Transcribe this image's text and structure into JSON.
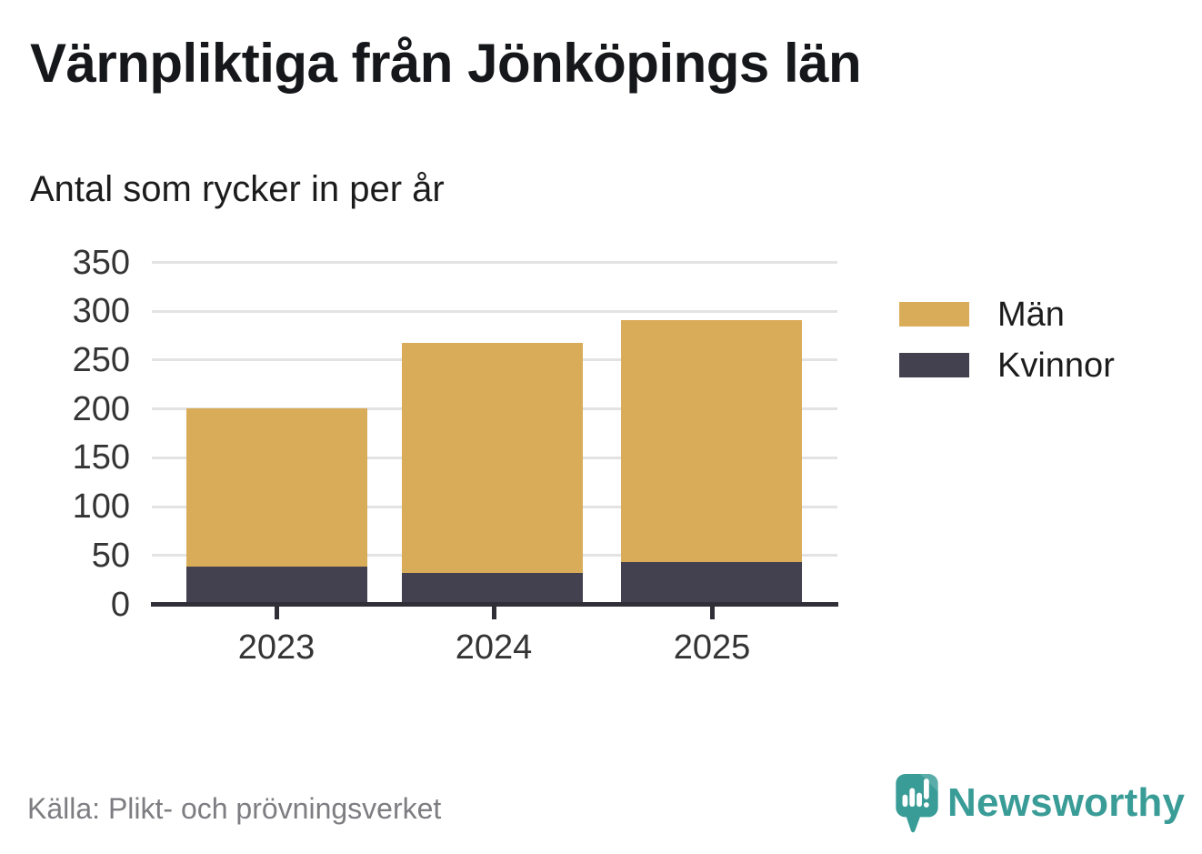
{
  "chart_data": {
    "type": "bar",
    "stacked": true,
    "title": "Värnpliktiga från Jönköpings län",
    "subtitle": "Antal som rycker in per år",
    "source": "Källa: Plikt- och prövningsverket",
    "categories": [
      "2023",
      "2024",
      "2025"
    ],
    "series": [
      {
        "name": "Kvinnor",
        "color": "#434050",
        "values": [
          39,
          32,
          43
        ]
      },
      {
        "name": "Män",
        "color": "#D9AC59",
        "values": [
          162,
          236,
          248
        ]
      }
    ],
    "totals": [
      201,
      268,
      291
    ],
    "legend_order": [
      "Män",
      "Kvinnor"
    ],
    "yticks": [
      0,
      50,
      100,
      150,
      200,
      250,
      300,
      350
    ],
    "ylim": [
      0,
      350
    ],
    "xlabel": "",
    "ylabel": "",
    "grid": true,
    "legend_position": "right"
  },
  "brand": {
    "name": "Newsworthy",
    "color": "#3A9C97"
  },
  "colors": {
    "axis": "#302E37",
    "gridline": "#E3E3E3",
    "tick_label": "#343434",
    "background": "#FFFFFF"
  }
}
